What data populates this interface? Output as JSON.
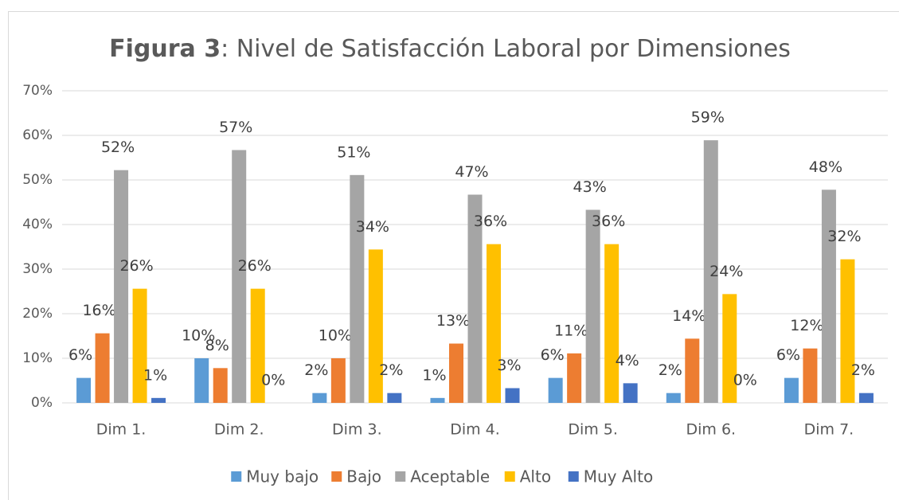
{
  "chart_data": {
    "type": "bar",
    "title_prefix": "Figura 3",
    "title": ": Nivel de Satisfacción Laboral por Dimensiones",
    "categories": [
      "Dim 1.",
      "Dim 2.",
      "Dim 3.",
      "Dim 4.",
      "Dim 5.",
      "Dim 6.",
      "Dim 7."
    ],
    "series": [
      {
        "name": "Muy bajo",
        "color": "#5b9bd5",
        "values": [
          5.6,
          10.0,
          2.2,
          1.1,
          5.6,
          2.2,
          5.6
        ],
        "value_labels": [
          "6%",
          "10%",
          "2%",
          "1%",
          "6%",
          "2%",
          "6%"
        ]
      },
      {
        "name": "Bajo",
        "color": "#ed7d31",
        "values": [
          15.6,
          7.8,
          10.0,
          13.3,
          11.1,
          14.4,
          12.2
        ],
        "value_labels": [
          "16%",
          "8%",
          "10%",
          "13%",
          "11%",
          "14%",
          "12%"
        ]
      },
      {
        "name": "Aceptable",
        "color": "#a5a5a5",
        "values": [
          52.2,
          56.7,
          51.1,
          46.7,
          43.3,
          58.9,
          47.8
        ],
        "value_labels": [
          "52%",
          "57%",
          "51%",
          "47%",
          "43%",
          "59%",
          "48%"
        ]
      },
      {
        "name": "Alto",
        "color": "#ffc000",
        "values": [
          25.6,
          25.6,
          34.4,
          35.6,
          35.6,
          24.4,
          32.2
        ],
        "value_labels": [
          "26%",
          "26%",
          "34%",
          "36%",
          "36%",
          "24%",
          "32%"
        ]
      },
      {
        "name": "Muy Alto",
        "color": "#4472c4",
        "values": [
          1.1,
          0,
          2.2,
          3.3,
          4.4,
          0,
          2.2
        ],
        "value_labels": [
          "1%",
          "0%",
          "2%",
          "3%",
          "4%",
          "0%",
          "2%"
        ]
      }
    ],
    "ylim": [
      0,
      70
    ],
    "yticks": [
      {
        "value": 0,
        "label": "0%"
      },
      {
        "value": 10,
        "label": "10%"
      },
      {
        "value": 20,
        "label": "20%"
      },
      {
        "value": 30,
        "label": "30%"
      },
      {
        "value": 40,
        "label": "40%"
      },
      {
        "value": 50,
        "label": "50%"
      },
      {
        "value": 60,
        "label": "60%"
      },
      {
        "value": 70,
        "label": "70%"
      }
    ],
    "grid": true,
    "legend": "bottom"
  }
}
